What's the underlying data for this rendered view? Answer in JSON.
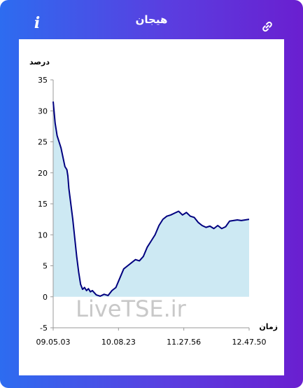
{
  "header": {
    "title": "هیجان",
    "info_icon": "info-icon",
    "link_icon": "link-icon"
  },
  "colors": {
    "gradient_start": "#2d6cf0",
    "gradient_end": "#6a1fd0",
    "line": "#00007f",
    "area": "#cde9f3"
  },
  "watermark": "LiveTSE.ir",
  "chart_data": {
    "type": "area",
    "ylabel": "درصد",
    "xlabel": "زمان",
    "ylim": [
      -5,
      35
    ],
    "y_ticks": [
      -5,
      0,
      5,
      10,
      15,
      20,
      25,
      30,
      35
    ],
    "x_ticks": [
      "09.05.03",
      "10.08.23",
      "11.27.56",
      "12.47.50"
    ],
    "grid": false,
    "series": [
      {
        "x": [
          0,
          0.01,
          0.02,
          0.04,
          0.06,
          0.07,
          0.075,
          0.08,
          0.09,
          0.1,
          0.11,
          0.12,
          0.13,
          0.14,
          0.15,
          0.16,
          0.17,
          0.18,
          0.19,
          0.2,
          0.22,
          0.24,
          0.26,
          0.28,
          0.3,
          0.32,
          0.34,
          0.36,
          0.38,
          0.4,
          0.42,
          0.44,
          0.46,
          0.48,
          0.5,
          0.52,
          0.54,
          0.56,
          0.58,
          0.6,
          0.62,
          0.64,
          0.66,
          0.68,
          0.7,
          0.72,
          0.74,
          0.76,
          0.78,
          0.8,
          0.82,
          0.84,
          0.86,
          0.88,
          0.9,
          0.92,
          0.94,
          0.96,
          0.98,
          1.0
        ],
        "y": [
          31.5,
          28,
          26,
          24,
          21,
          20.5,
          19.5,
          17.5,
          15,
          12.5,
          9.5,
          6.5,
          4,
          2,
          1.2,
          1.5,
          1.0,
          1.3,
          0.8,
          1.0,
          0.3,
          0.1,
          0.4,
          0.2,
          1.0,
          1.5,
          3,
          4.5,
          5,
          5.5,
          6,
          5.8,
          6.5,
          8,
          9,
          10,
          11.5,
          12.5,
          13,
          13.2,
          13.5,
          13.8,
          13.2,
          13.6,
          13.0,
          12.8,
          12.0,
          11.5,
          11.2,
          11.4,
          11.0,
          11.5,
          11.0,
          11.3,
          12.2,
          12.3,
          12.4,
          12.3,
          12.4,
          12.5
        ]
      }
    ]
  }
}
